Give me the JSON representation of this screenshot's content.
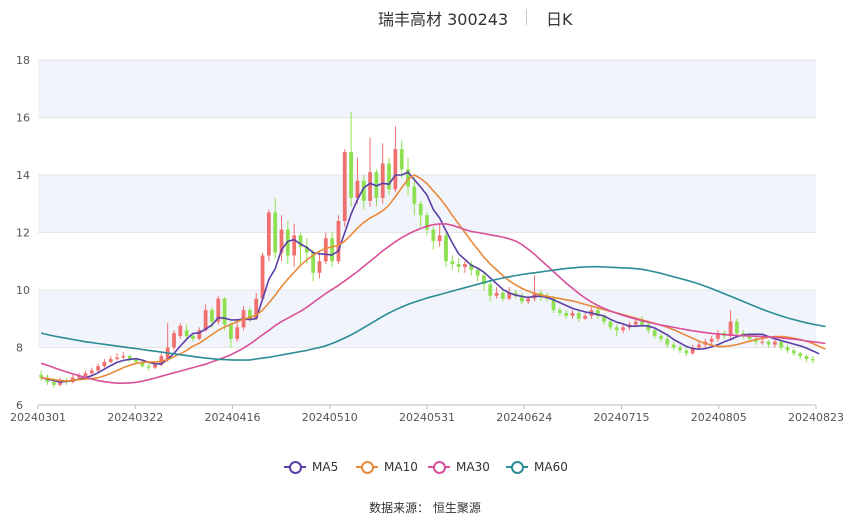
{
  "header": {
    "title": "瑞丰高材 300243",
    "period": "日K"
  },
  "source_text": "数据来源： 恒生聚源",
  "chart_data": {
    "type": "candlestick",
    "ylim": [
      6,
      18
    ],
    "y_ticks": [
      "6",
      "8",
      "10",
      "12",
      "14",
      "16",
      "18"
    ],
    "x_ticks": [
      "20240301",
      "20240322",
      "20240416",
      "20240510",
      "20240531",
      "20240624",
      "20240715",
      "20240805",
      "20240823"
    ],
    "colors": {
      "up": "#f07070",
      "down": "#8ee050",
      "MA5": "#5b3fa8",
      "MA10": "#e8893a",
      "MA30": "#d9509a",
      "MA60": "#2a8c94",
      "band": "#f2f4fb",
      "grid": "#e6e6e6"
    },
    "candles": [
      [
        7.05,
        6.95,
        7.2,
        6.85
      ],
      [
        6.95,
        6.8,
        7.05,
        6.7
      ],
      [
        6.8,
        6.7,
        6.95,
        6.6
      ],
      [
        6.7,
        6.85,
        6.95,
        6.65
      ],
      [
        6.85,
        6.8,
        6.95,
        6.7
      ],
      [
        6.8,
        6.95,
        7.05,
        6.75
      ],
      [
        6.95,
        7.0,
        7.1,
        6.9
      ],
      [
        7.0,
        7.1,
        7.2,
        6.95
      ],
      [
        7.1,
        7.2,
        7.3,
        7.05
      ],
      [
        7.2,
        7.35,
        7.45,
        7.15
      ],
      [
        7.35,
        7.5,
        7.6,
        7.3
      ],
      [
        7.5,
        7.6,
        7.7,
        7.45
      ],
      [
        7.6,
        7.65,
        7.8,
        7.55
      ],
      [
        7.65,
        7.7,
        7.85,
        7.6
      ],
      [
        7.7,
        7.6,
        7.75,
        7.5
      ],
      [
        7.6,
        7.5,
        7.65,
        7.4
      ],
      [
        7.5,
        7.35,
        7.55,
        7.3
      ],
      [
        7.35,
        7.3,
        7.45,
        7.2
      ],
      [
        7.3,
        7.4,
        7.5,
        7.25
      ],
      [
        7.4,
        7.7,
        7.8,
        7.35
      ],
      [
        7.6,
        8.0,
        8.85,
        7.5
      ],
      [
        8.0,
        8.5,
        8.6,
        7.9
      ],
      [
        8.4,
        8.75,
        8.85,
        8.3
      ],
      [
        8.6,
        8.4,
        8.8,
        8.3
      ],
      [
        8.4,
        8.3,
        8.5,
        8.2
      ],
      [
        8.3,
        8.6,
        8.7,
        8.25
      ],
      [
        8.6,
        9.3,
        9.5,
        8.55
      ],
      [
        9.3,
        8.9,
        9.4,
        8.7
      ],
      [
        8.9,
        9.7,
        9.8,
        8.8
      ],
      [
        9.7,
        8.8,
        9.75,
        8.6
      ],
      [
        8.8,
        8.3,
        8.9,
        8.0
      ],
      [
        8.3,
        8.7,
        9.0,
        8.2
      ],
      [
        8.7,
        9.3,
        9.45,
        8.6
      ],
      [
        9.3,
        9.0,
        9.4,
        8.9
      ],
      [
        9.0,
        9.7,
        9.9,
        8.95
      ],
      [
        9.7,
        11.2,
        11.3,
        9.6
      ],
      [
        11.2,
        12.7,
        12.8,
        11.0
      ],
      [
        12.7,
        11.3,
        13.2,
        11.1
      ],
      [
        11.3,
        12.1,
        12.6,
        11.0
      ],
      [
        12.1,
        11.2,
        12.4,
        10.9
      ],
      [
        11.2,
        11.9,
        12.3,
        10.8
      ],
      [
        11.9,
        11.5,
        12.0,
        10.9
      ],
      [
        11.5,
        11.3,
        11.8,
        10.9
      ],
      [
        11.3,
        10.6,
        11.4,
        10.3
      ],
      [
        10.6,
        11.0,
        11.3,
        10.4
      ],
      [
        11.0,
        11.8,
        12.0,
        10.9
      ],
      [
        11.8,
        11.0,
        12.0,
        10.8
      ],
      [
        11.0,
        12.4,
        12.6,
        10.9
      ],
      [
        12.4,
        14.8,
        14.9,
        12.2
      ],
      [
        14.8,
        13.2,
        16.2,
        12.9
      ],
      [
        13.2,
        13.8,
        14.6,
        13.0
      ],
      [
        13.8,
        13.1,
        14.0,
        12.8
      ],
      [
        13.1,
        14.1,
        15.3,
        12.9
      ],
      [
        14.1,
        13.2,
        14.2,
        12.9
      ],
      [
        13.2,
        14.4,
        15.1,
        13.0
      ],
      [
        14.4,
        13.5,
        14.6,
        13.3
      ],
      [
        13.5,
        14.9,
        15.7,
        13.4
      ],
      [
        14.9,
        14.2,
        15.2,
        13.9
      ],
      [
        14.2,
        13.6,
        14.6,
        13.3
      ],
      [
        13.6,
        13.0,
        13.9,
        12.6
      ],
      [
        13.0,
        12.6,
        13.1,
        12.2
      ],
      [
        12.6,
        12.1,
        12.7,
        11.9
      ],
      [
        12.1,
        11.7,
        12.2,
        11.4
      ],
      [
        11.7,
        11.9,
        12.3,
        11.5
      ],
      [
        11.9,
        11.0,
        12.0,
        10.8
      ],
      [
        11.0,
        10.9,
        11.2,
        10.7
      ],
      [
        10.9,
        10.8,
        11.1,
        10.6
      ],
      [
        10.8,
        10.9,
        11.0,
        10.6
      ],
      [
        10.9,
        10.7,
        11.0,
        10.5
      ],
      [
        10.7,
        10.5,
        10.8,
        10.3
      ],
      [
        10.5,
        10.2,
        10.6,
        10.0
      ],
      [
        10.2,
        9.8,
        10.3,
        9.6
      ],
      [
        9.8,
        9.9,
        10.1,
        9.7
      ],
      [
        9.9,
        9.7,
        10.0,
        9.6
      ],
      [
        9.7,
        9.9,
        10.1,
        9.65
      ],
      [
        9.9,
        9.8,
        10.0,
        9.7
      ],
      [
        9.8,
        9.6,
        9.9,
        9.5
      ],
      [
        9.6,
        9.7,
        9.8,
        9.5
      ],
      [
        9.7,
        9.9,
        10.5,
        9.6
      ],
      [
        9.9,
        9.8,
        10.0,
        9.6
      ],
      [
        9.8,
        9.7,
        9.9,
        9.6
      ],
      [
        9.7,
        9.3,
        9.8,
        9.2
      ],
      [
        9.3,
        9.2,
        9.4,
        9.1
      ],
      [
        9.2,
        9.1,
        9.3,
        9.0
      ],
      [
        9.1,
        9.2,
        9.3,
        9.0
      ],
      [
        9.2,
        9.0,
        9.3,
        8.9
      ],
      [
        9.0,
        9.1,
        9.2,
        8.95
      ],
      [
        9.1,
        9.3,
        9.4,
        9.0
      ],
      [
        9.3,
        9.1,
        9.35,
        9.0
      ],
      [
        9.1,
        8.9,
        9.15,
        8.8
      ],
      [
        8.9,
        8.7,
        8.95,
        8.6
      ],
      [
        8.7,
        8.6,
        8.8,
        8.4
      ],
      [
        8.6,
        8.7,
        8.8,
        8.5
      ],
      [
        8.7,
        8.8,
        8.9,
        8.6
      ],
      [
        8.8,
        8.9,
        9.0,
        8.7
      ],
      [
        8.9,
        8.8,
        9.1,
        8.7
      ],
      [
        8.8,
        8.6,
        8.9,
        8.5
      ],
      [
        8.6,
        8.4,
        8.7,
        8.3
      ],
      [
        8.4,
        8.3,
        8.5,
        8.2
      ],
      [
        8.3,
        8.1,
        8.4,
        8.0
      ],
      [
        8.1,
        8.0,
        8.2,
        7.9
      ],
      [
        8.0,
        7.9,
        8.1,
        7.8
      ],
      [
        7.9,
        7.8,
        8.0,
        7.7
      ],
      [
        7.8,
        8.0,
        8.1,
        7.75
      ],
      [
        8.0,
        8.1,
        8.2,
        7.9
      ],
      [
        8.1,
        8.2,
        8.3,
        8.0
      ],
      [
        8.2,
        8.3,
        8.4,
        8.1
      ],
      [
        8.3,
        8.5,
        8.6,
        8.2
      ],
      [
        8.5,
        8.4,
        8.6,
        8.3
      ],
      [
        8.4,
        8.9,
        9.3,
        8.3
      ],
      [
        8.9,
        8.5,
        9.0,
        8.4
      ],
      [
        8.5,
        8.4,
        8.6,
        8.3
      ],
      [
        8.4,
        8.3,
        8.5,
        8.2
      ],
      [
        8.3,
        8.2,
        8.4,
        8.1
      ],
      [
        8.2,
        8.2,
        8.3,
        8.1
      ],
      [
        8.2,
        8.1,
        8.25,
        8.0
      ],
      [
        8.1,
        8.2,
        8.3,
        8.0
      ],
      [
        8.2,
        8.0,
        8.25,
        7.9
      ],
      [
        8.0,
        7.9,
        8.1,
        7.8
      ],
      [
        7.9,
        7.8,
        7.95,
        7.7
      ],
      [
        7.8,
        7.7,
        7.85,
        7.6
      ],
      [
        7.7,
        7.6,
        7.75,
        7.5
      ],
      [
        7.6,
        7.55,
        7.7,
        7.45
      ]
    ],
    "series": [
      {
        "name": "MA5",
        "values": [
          6.95,
          6.9,
          6.85,
          6.8,
          6.82,
          6.85,
          6.9,
          6.95,
          7.02,
          7.12,
          7.25,
          7.37,
          7.48,
          7.55,
          7.59,
          7.61,
          7.56,
          7.49,
          7.43,
          7.43,
          7.59,
          7.8,
          8.05,
          8.29,
          8.49,
          8.51,
          8.64,
          8.78,
          9.04,
          9.02,
          8.96,
          8.96,
          8.99,
          8.97,
          9.01,
          9.67,
          10.37,
          10.74,
          11.4,
          11.69,
          11.75,
          11.6,
          11.48,
          11.3,
          11.26,
          11.24,
          11.22,
          11.36,
          12.0,
          12.64,
          13.14,
          13.55,
          13.71,
          13.62,
          13.71,
          13.68,
          14.0,
          14.0,
          14.1,
          13.84,
          13.58,
          13.3,
          12.8,
          12.5,
          12.06,
          11.64,
          11.26,
          11.06,
          10.86,
          10.76,
          10.62,
          10.42,
          10.22,
          10.02,
          9.9,
          9.82,
          9.78,
          9.74,
          9.78,
          9.78,
          9.74,
          9.66,
          9.56,
          9.46,
          9.36,
          9.3,
          9.24,
          9.2,
          9.14,
          9.1,
          8.98,
          8.88,
          8.82,
          8.74,
          8.74,
          8.76,
          8.74,
          8.68,
          8.56,
          8.44,
          8.28,
          8.16,
          8.04,
          7.96,
          7.94,
          7.96,
          8.02,
          8.1,
          8.2,
          8.28,
          8.38,
          8.44,
          8.46,
          8.46,
          8.46,
          8.38,
          8.3,
          8.24,
          8.18,
          8.12,
          8.06,
          7.98,
          7.88,
          7.78
        ]
      },
      {
        "name": "MA10",
        "values": [
          6.95,
          6.92,
          6.88,
          6.85,
          6.83,
          6.86,
          6.88,
          6.9,
          6.92,
          6.95,
          7.02,
          7.1,
          7.2,
          7.3,
          7.38,
          7.45,
          7.48,
          7.5,
          7.5,
          7.52,
          7.58,
          7.68,
          7.78,
          7.9,
          8.05,
          8.15,
          8.3,
          8.45,
          8.6,
          8.72,
          8.8,
          8.9,
          8.98,
          9.05,
          9.12,
          9.3,
          9.55,
          9.82,
          10.12,
          10.38,
          10.62,
          10.86,
          11.05,
          11.2,
          11.35,
          11.45,
          11.5,
          11.55,
          11.7,
          11.92,
          12.15,
          12.35,
          12.5,
          12.62,
          12.76,
          12.95,
          13.25,
          13.55,
          13.85,
          14.0,
          13.88,
          13.7,
          13.45,
          13.2,
          12.92,
          12.6,
          12.3,
          12.0,
          11.7,
          11.42,
          11.14,
          10.9,
          10.7,
          10.5,
          10.32,
          10.18,
          10.06,
          9.96,
          9.88,
          9.82,
          9.78,
          9.74,
          9.7,
          9.66,
          9.62,
          9.56,
          9.5,
          9.44,
          9.38,
          9.32,
          9.26,
          9.2,
          9.14,
          9.08,
          9.02,
          8.96,
          8.9,
          8.84,
          8.78,
          8.7,
          8.62,
          8.52,
          8.42,
          8.32,
          8.22,
          8.14,
          8.08,
          8.04,
          8.04,
          8.06,
          8.1,
          8.16,
          8.22,
          8.28,
          8.32,
          8.36,
          8.38,
          8.38,
          8.36,
          8.32,
          8.28,
          8.22,
          8.14,
          8.04,
          7.94
        ]
      },
      {
        "name": "MA30",
        "values": [
          7.45,
          7.38,
          7.3,
          7.22,
          7.15,
          7.08,
          7.02,
          6.96,
          6.9,
          6.85,
          6.81,
          6.78,
          6.76,
          6.76,
          6.77,
          6.79,
          6.83,
          6.88,
          6.94,
          7.0,
          7.06,
          7.12,
          7.18,
          7.24,
          7.3,
          7.36,
          7.42,
          7.5,
          7.58,
          7.66,
          7.75,
          7.86,
          7.98,
          8.12,
          8.28,
          8.44,
          8.6,
          8.76,
          8.9,
          9.02,
          9.14,
          9.26,
          9.4,
          9.56,
          9.72,
          9.88,
          10.02,
          10.16,
          10.32,
          10.48,
          10.64,
          10.82,
          11.0,
          11.18,
          11.36,
          11.52,
          11.68,
          11.82,
          11.94,
          12.05,
          12.14,
          12.22,
          12.27,
          12.3,
          12.3,
          12.25,
          12.18,
          12.1,
          12.04,
          12.0,
          11.96,
          11.92,
          11.88,
          11.84,
          11.78,
          11.7,
          11.58,
          11.42,
          11.24,
          11.04,
          10.84,
          10.64,
          10.44,
          10.24,
          10.06,
          9.88,
          9.72,
          9.58,
          9.46,
          9.36,
          9.27,
          9.19,
          9.12,
          9.05,
          8.99,
          8.93,
          8.88,
          8.83,
          8.78,
          8.74,
          8.7,
          8.66,
          8.62,
          8.58,
          8.55,
          8.52,
          8.49,
          8.47,
          8.45,
          8.43,
          8.42,
          8.41,
          8.4,
          8.39,
          8.38,
          8.37,
          8.35,
          8.33,
          8.31,
          8.29,
          8.26,
          8.23,
          8.2,
          8.17,
          8.14
        ]
      },
      {
        "name": "MA60",
        "values": [
          8.5,
          8.45,
          8.4,
          8.36,
          8.32,
          8.28,
          8.24,
          8.2,
          8.17,
          8.14,
          8.11,
          8.08,
          8.05,
          8.02,
          7.99,
          7.96,
          7.93,
          7.9,
          7.87,
          7.84,
          7.81,
          7.78,
          7.75,
          7.72,
          7.69,
          7.66,
          7.63,
          7.61,
          7.59,
          7.58,
          7.57,
          7.56,
          7.56,
          7.57,
          7.6,
          7.63,
          7.66,
          7.7,
          7.74,
          7.78,
          7.82,
          7.86,
          7.9,
          7.95,
          8.0,
          8.06,
          8.14,
          8.23,
          8.33,
          8.44,
          8.56,
          8.69,
          8.82,
          8.95,
          9.08,
          9.2,
          9.31,
          9.41,
          9.5,
          9.58,
          9.65,
          9.72,
          9.78,
          9.84,
          9.9,
          9.96,
          10.02,
          10.08,
          10.14,
          10.2,
          10.26,
          10.32,
          10.37,
          10.42,
          10.46,
          10.5,
          10.54,
          10.57,
          10.6,
          10.63,
          10.66,
          10.69,
          10.72,
          10.75,
          10.77,
          10.79,
          10.8,
          10.81,
          10.81,
          10.8,
          10.79,
          10.78,
          10.77,
          10.76,
          10.74,
          10.72,
          10.68,
          10.63,
          10.58,
          10.52,
          10.46,
          10.4,
          10.34,
          10.28,
          10.21,
          10.13,
          10.05,
          9.96,
          9.87,
          9.78,
          9.69,
          9.6,
          9.51,
          9.42,
          9.33,
          9.25,
          9.17,
          9.1,
          9.03,
          8.97,
          8.91,
          8.86,
          8.81,
          8.77,
          8.73
        ]
      }
    ]
  }
}
